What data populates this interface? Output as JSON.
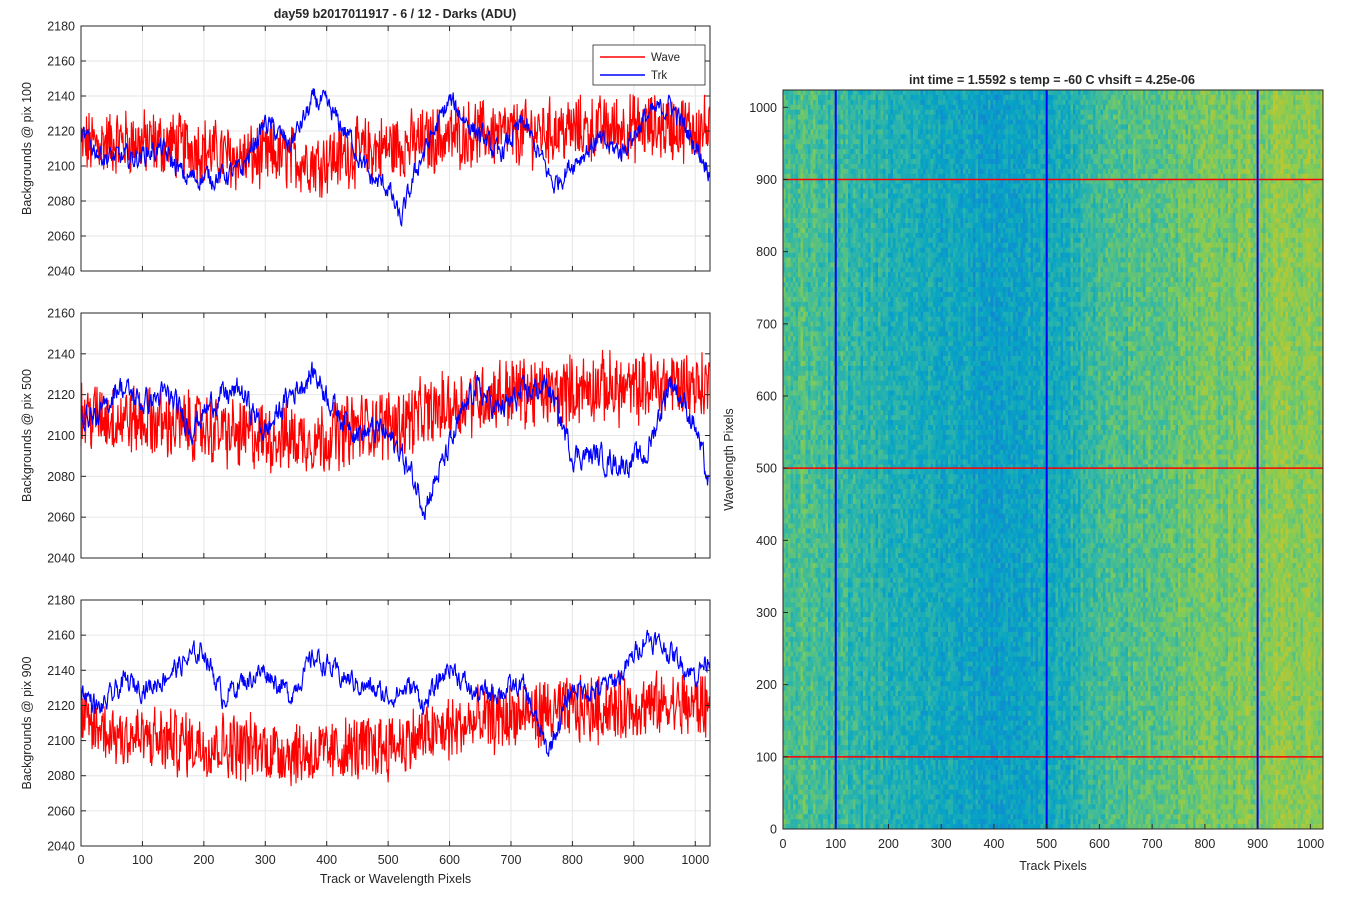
{
  "figure": {
    "title": "day59 b2017011917 - 6 / 12 - Darks (ADU)",
    "heatmap_title": "int time = 1.5592 s    temp = -60 C    vhsift = 4.25e-06",
    "colors": {
      "wave": "#ff0000",
      "trk": "#0000ff",
      "grid": "#e6e6e6",
      "axis": "#262626"
    }
  },
  "chart_data": [
    {
      "type": "line",
      "title": "day59 b2017011917 - 6 / 12 - Darks (ADU)",
      "xlabel": "",
      "ylabel": "Backgrounds @ pix 100",
      "xlim": [
        0,
        1024
      ],
      "ylim": [
        2040,
        2180
      ],
      "xticks": [
        "0",
        "100",
        "200",
        "300",
        "400",
        "500",
        "600",
        "700",
        "800",
        "900",
        "1000"
      ],
      "yticks": [
        "2040",
        "2060",
        "2080",
        "2100",
        "2120",
        "2140",
        "2160",
        "2180"
      ],
      "grid": true,
      "legend": {
        "position": "top-right",
        "entries": [
          "Wave",
          "Trk"
        ]
      },
      "series": [
        {
          "name": "Wave",
          "color": "#ff0000",
          "x": [
            0,
            64,
            128,
            192,
            256,
            320,
            384,
            448,
            512,
            576,
            640,
            704,
            768,
            832,
            896,
            960,
            1023
          ],
          "values": [
            2112,
            2114,
            2113,
            2110,
            2104,
            2106,
            2102,
            2108,
            2111,
            2115,
            2119,
            2118,
            2120,
            2121,
            2122,
            2122,
            2121
          ],
          "noise": 22
        },
        {
          "name": "Trk",
          "color": "#0000ff",
          "x": [
            0,
            40,
            80,
            130,
            170,
            220,
            260,
            300,
            340,
            380,
            400,
            440,
            470,
            500,
            520,
            550,
            600,
            640,
            680,
            720,
            770,
            800,
            840,
            880,
            920,
            960,
            1000,
            1023
          ],
          "values": [
            2117,
            2105,
            2104,
            2110,
            2093,
            2094,
            2097,
            2125,
            2112,
            2138,
            2134,
            2115,
            2093,
            2088,
            2068,
            2102,
            2137,
            2121,
            2106,
            2125,
            2089,
            2102,
            2114,
            2108,
            2128,
            2135,
            2112,
            2098
          ],
          "noise": 5
        }
      ]
    },
    {
      "type": "line",
      "xlabel": "",
      "ylabel": "Backgrounds @ pix 500",
      "xlim": [
        0,
        1024
      ],
      "ylim": [
        2040,
        2160
      ],
      "xticks": [
        "0",
        "100",
        "200",
        "300",
        "400",
        "500",
        "600",
        "700",
        "800",
        "900",
        "1000"
      ],
      "yticks": [
        "2040",
        "2060",
        "2080",
        "2100",
        "2120",
        "2140",
        "2160"
      ],
      "grid": true,
      "series": [
        {
          "name": "Wave",
          "color": "#ff0000",
          "x": [
            0,
            64,
            128,
            192,
            256,
            320,
            384,
            448,
            512,
            576,
            640,
            704,
            768,
            832,
            896,
            960,
            1023
          ],
          "values": [
            2110,
            2108,
            2106,
            2104,
            2100,
            2099,
            2098,
            2104,
            2106,
            2112,
            2118,
            2122,
            2120,
            2124,
            2122,
            2126,
            2124
          ],
          "noise": 20
        },
        {
          "name": "Trk",
          "color": "#0000ff",
          "x": [
            0,
            30,
            60,
            100,
            140,
            180,
            220,
            260,
            300,
            340,
            380,
            420,
            460,
            490,
            520,
            560,
            600,
            640,
            680,
            720,
            760,
            800,
            840,
            880,
            920,
            960,
            1000,
            1023
          ],
          "values": [
            2112,
            2108,
            2125,
            2116,
            2120,
            2104,
            2118,
            2122,
            2101,
            2120,
            2131,
            2110,
            2101,
            2103,
            2092,
            2066,
            2094,
            2124,
            2112,
            2120,
            2125,
            2091,
            2090,
            2086,
            2090,
            2128,
            2105,
            2074
          ],
          "noise": 5
        }
      ]
    },
    {
      "type": "line",
      "xlabel": "Track or Wavelength Pixels",
      "ylabel": "Backgrounds @ pix 900",
      "xlim": [
        0,
        1024
      ],
      "ylim": [
        2040,
        2180
      ],
      "xticks": [
        "0",
        "100",
        "200",
        "300",
        "400",
        "500",
        "600",
        "700",
        "800",
        "900",
        "1000"
      ],
      "yticks": [
        "2040",
        "2060",
        "2080",
        "2100",
        "2120",
        "2140",
        "2160",
        "2180"
      ],
      "grid": true,
      "series": [
        {
          "name": "Wave",
          "color": "#ff0000",
          "x": [
            0,
            64,
            128,
            192,
            256,
            320,
            384,
            448,
            512,
            576,
            640,
            704,
            768,
            832,
            896,
            960,
            1023
          ],
          "values": [
            2110,
            2103,
            2100,
            2098,
            2097,
            2094,
            2092,
            2095,
            2098,
            2104,
            2110,
            2114,
            2116,
            2118,
            2119,
            2120,
            2120
          ],
          "noise": 22
        },
        {
          "name": "Trk",
          "color": "#0000ff",
          "x": [
            0,
            30,
            70,
            110,
            150,
            200,
            230,
            260,
            300,
            340,
            380,
            420,
            460,
            500,
            540,
            560,
            600,
            640,
            680,
            720,
            760,
            800,
            840,
            880,
            920,
            960,
            1000,
            1023
          ],
          "values": [
            2130,
            2117,
            2133,
            2130,
            2140,
            2152,
            2125,
            2133,
            2140,
            2126,
            2148,
            2137,
            2131,
            2125,
            2131,
            2120,
            2143,
            2126,
            2128,
            2131,
            2093,
            2130,
            2128,
            2137,
            2160,
            2150,
            2137,
            2148
          ],
          "noise": 5
        }
      ]
    },
    {
      "type": "heatmap",
      "title": "int time = 1.5592 s    temp = -60 C    vhsift = 4.25e-06",
      "xlabel": "Track Pixels",
      "ylabel": "Wavelength Pixels",
      "xlim": [
        0,
        1024
      ],
      "ylim": [
        0,
        1024
      ],
      "xticks": [
        "0",
        "100",
        "200",
        "300",
        "400",
        "500",
        "600",
        "700",
        "800",
        "900",
        "1000"
      ],
      "yticks": [
        "0",
        "100",
        "200",
        "300",
        "400",
        "500",
        "600",
        "700",
        "800",
        "900",
        "1000"
      ],
      "colormap": "parula",
      "column_level": {
        "x": [
          0,
          100,
          200,
          300,
          400,
          500,
          600,
          700,
          800,
          900,
          1000,
          1024
        ],
        "values": [
          0.55,
          0.5,
          0.44,
          0.4,
          0.36,
          0.4,
          0.5,
          0.56,
          0.6,
          0.63,
          0.66,
          0.66
        ]
      },
      "vertical_lines": {
        "positions": [
          100,
          500,
          900
        ],
        "color": "#0000ff"
      },
      "horizontal_lines": {
        "positions": [
          100,
          500,
          900
        ],
        "color": "#ff0000"
      }
    }
  ]
}
